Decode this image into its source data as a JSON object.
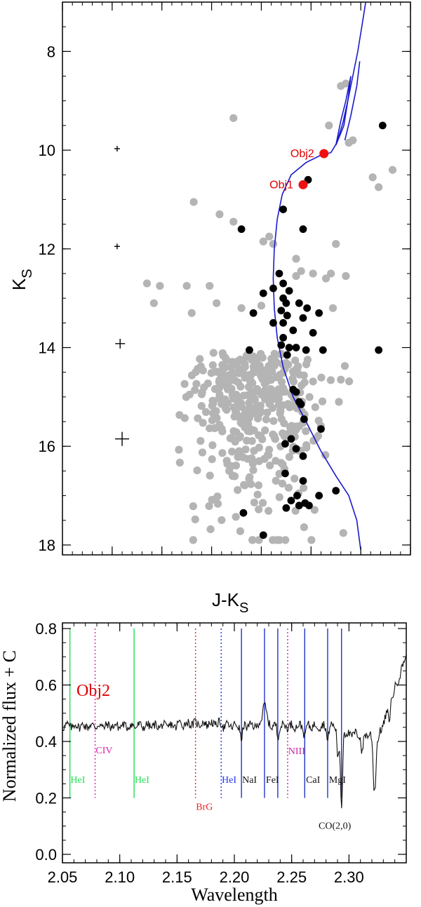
{
  "chart_data": [
    {
      "type": "scatter",
      "xlabel": "J-K",
      "xlabel_sub": "S",
      "ylabel": "K",
      "ylabel_sub": "S",
      "xlim": [
        -0.5,
        3.0
      ],
      "ylim": [
        18.2,
        7.0
      ],
      "xticks": [
        "-0.5",
        "0.0",
        "0.5",
        "1.0",
        "1.5",
        "2.0",
        "2.5",
        "3.0"
      ],
      "yticks": [
        "8",
        "10",
        "12",
        "14",
        "16",
        "18"
      ],
      "isochrone": [
        [
          2.5,
          18.1
        ],
        [
          2.46,
          17.5
        ],
        [
          2.38,
          17.0
        ],
        [
          2.25,
          16.6
        ],
        [
          2.1,
          16.1
        ],
        [
          1.95,
          15.5
        ],
        [
          1.82,
          15.0
        ],
        [
          1.72,
          14.4
        ],
        [
          1.66,
          13.8
        ],
        [
          1.63,
          13.2
        ],
        [
          1.62,
          12.6
        ],
        [
          1.63,
          12.0
        ],
        [
          1.66,
          11.4
        ],
        [
          1.71,
          10.9
        ],
        [
          1.8,
          10.5
        ],
        [
          1.95,
          10.25
        ],
        [
          2.1,
          10.1
        ],
        [
          2.2,
          10.05
        ],
        [
          2.26,
          9.85
        ],
        [
          2.32,
          9.45
        ],
        [
          2.37,
          9.0
        ],
        [
          2.42,
          8.5
        ],
        [
          2.47,
          8.0
        ],
        [
          2.51,
          7.5
        ],
        [
          2.55,
          7.0
        ]
      ],
      "loop": [
        [
          2.25,
          9.9
        ],
        [
          2.3,
          9.4
        ],
        [
          2.35,
          9.0
        ],
        [
          2.38,
          8.7
        ],
        [
          2.4,
          8.5
        ],
        [
          2.37,
          9.0
        ],
        [
          2.33,
          9.5
        ],
        [
          2.28,
          9.75
        ],
        [
          2.25,
          9.9
        ]
      ],
      "branch": [
        [
          2.34,
          9.8
        ],
        [
          2.4,
          9.3
        ],
        [
          2.46,
          8.7
        ],
        [
          2.49,
          8.2
        ]
      ],
      "black_points": [
        [
          2.72,
          9.5
        ],
        [
          1.97,
          10.6
        ],
        [
          1.72,
          11.2
        ],
        [
          1.3,
          11.6
        ],
        [
          1.92,
          11.6
        ],
        [
          1.68,
          12.5
        ],
        [
          1.72,
          12.7
        ],
        [
          1.62,
          12.8
        ],
        [
          1.78,
          12.85
        ],
        [
          1.52,
          12.9
        ],
        [
          1.72,
          13.0
        ],
        [
          1.75,
          13.1
        ],
        [
          1.88,
          13.1
        ],
        [
          1.96,
          13.2
        ],
        [
          1.7,
          13.25
        ],
        [
          1.42,
          13.3
        ],
        [
          1.76,
          13.35
        ],
        [
          2.08,
          13.3
        ],
        [
          1.72,
          13.5
        ],
        [
          1.62,
          13.5
        ],
        [
          1.92,
          13.4
        ],
        [
          1.82,
          13.65
        ],
        [
          2.02,
          13.7
        ],
        [
          1.72,
          13.8
        ],
        [
          1.7,
          13.95
        ],
        [
          1.78,
          14.0
        ],
        [
          1.85,
          14.0
        ],
        [
          1.95,
          14.05
        ],
        [
          1.76,
          14.15
        ],
        [
          1.38,
          14.05
        ],
        [
          2.12,
          14.05
        ],
        [
          2.68,
          14.05
        ],
        [
          1.82,
          14.85
        ],
        [
          1.85,
          14.9
        ],
        [
          1.88,
          15.1
        ],
        [
          1.9,
          15.15
        ],
        [
          1.93,
          15.45
        ],
        [
          2.1,
          15.65
        ],
        [
          1.8,
          15.85
        ],
        [
          1.74,
          15.95
        ],
        [
          1.85,
          16.05
        ],
        [
          1.92,
          16.2
        ],
        [
          1.74,
          16.55
        ],
        [
          1.92,
          16.7
        ],
        [
          2.25,
          16.9
        ],
        [
          1.86,
          17.0
        ],
        [
          2.08,
          17.0
        ],
        [
          1.8,
          17.1
        ],
        [
          1.94,
          17.15
        ],
        [
          1.98,
          17.2
        ],
        [
          1.75,
          17.25
        ],
        [
          1.88,
          17.2
        ],
        [
          1.32,
          17.35
        ],
        [
          1.52,
          17.8
        ]
      ],
      "red_points": [
        {
          "name": "Obj1",
          "x": 1.92,
          "y": 10.7
        },
        {
          "name": "Obj2",
          "x": 2.13,
          "y": 10.07
        }
      ],
      "error_bars": [
        {
          "x": 0.05,
          "y": 9.97,
          "size": "small"
        },
        {
          "x": 0.05,
          "y": 11.95,
          "size": "small"
        },
        {
          "x": 0.08,
          "y": 13.92,
          "size": "medium"
        },
        {
          "x": 0.1,
          "y": 15.85,
          "size": "large"
        }
      ],
      "gray_n": 420,
      "gray_extra": [
        [
          1.22,
          9.35
        ],
        [
          2.18,
          9.5
        ],
        [
          2.38,
          9.85
        ],
        [
          2.42,
          9.8
        ],
        [
          2.3,
          8.7
        ],
        [
          2.35,
          8.65
        ],
        [
          2.62,
          10.55
        ],
        [
          2.82,
          10.4
        ],
        [
          2.68,
          10.75
        ],
        [
          0.82,
          11.05
        ],
        [
          1.08,
          11.3
        ],
        [
          1.22,
          11.45
        ],
        [
          1.58,
          11.75
        ],
        [
          1.52,
          11.85
        ],
        [
          1.62,
          11.9
        ],
        [
          2.25,
          11.9
        ],
        [
          1.85,
          12.2
        ],
        [
          1.9,
          12.45
        ],
        [
          1.85,
          12.55
        ],
        [
          2.2,
          12.5
        ],
        [
          2.02,
          12.5
        ],
        [
          2.15,
          12.6
        ],
        [
          2.35,
          12.55
        ],
        [
          0.48,
          12.75
        ],
        [
          0.35,
          12.7
        ],
        [
          0.75,
          12.75
        ],
        [
          0.98,
          12.75
        ],
        [
          0.42,
          13.1
        ],
        [
          1.05,
          13.1
        ],
        [
          1.3,
          13.2
        ],
        [
          1.5,
          13.15
        ],
        [
          0.8,
          13.3
        ],
        [
          2.22,
          13.2
        ],
        [
          2.3,
          14.65
        ],
        [
          2.28,
          15.1
        ]
      ]
    },
    {
      "type": "line",
      "xlabel": "Wavelength",
      "ylabel": "Normalized flux + C",
      "xlim": [
        2.05,
        2.35
      ],
      "ylim": [
        -0.03,
        0.82
      ],
      "xticks": [
        "2.05",
        "2.10",
        "2.15",
        "2.20",
        "2.25",
        "2.30"
      ],
      "yticks": [
        "0.0",
        "0.2",
        "0.4",
        "0.6",
        "0.8"
      ],
      "object_label": "Obj2",
      "markers": [
        {
          "x": 2.0565,
          "label": "HeI",
          "color": "#22dd55",
          "style": "solid",
          "lx": 2.057,
          "ly": 0.253
        },
        {
          "x": 2.0785,
          "label": "CIV",
          "color": "#dd22aa",
          "style": "dotted",
          "lx": 2.079,
          "ly": 0.358
        },
        {
          "x": 2.1125,
          "label": "HeI",
          "color": "#22dd55",
          "style": "solid",
          "lx": 2.113,
          "ly": 0.253
        },
        {
          "x": 2.1661,
          "label": "BrG",
          "color": "#ee2222",
          "style": "dotted",
          "lx": 2.1665,
          "ly": 0.158
        },
        {
          "x": 2.1885,
          "label": "HeI",
          "color": "#2233ee",
          "style": "dotted",
          "lx": 2.189,
          "ly": 0.253
        },
        {
          "x": 2.2062,
          "label": "NaI",
          "color": "#2233cc",
          "style": "solid",
          "lx": 2.2068,
          "ly": 0.253
        },
        {
          "x": 2.2263,
          "label": "FeI",
          "color": "#2233cc",
          "style": "solid",
          "lx": 2.2275,
          "ly": 0.253
        },
        {
          "x": 2.2379,
          "label": "",
          "color": "#2233cc",
          "style": "solid"
        },
        {
          "x": 2.2465,
          "label": "NIII",
          "color": "#cc22aa",
          "style": "dotted",
          "lx": 2.247,
          "ly": 0.355
        },
        {
          "x": 2.2614,
          "label": "CaI",
          "color": "#2233cc",
          "style": "solid",
          "lx": 2.2625,
          "ly": 0.253
        },
        {
          "x": 2.2814,
          "label": "MgI",
          "color": "#2233cc",
          "style": "solid",
          "lx": 2.2825,
          "ly": 0.253
        },
        {
          "x": 2.2935,
          "label": "",
          "color": "#2233cc",
          "style": "solid"
        }
      ],
      "co_label": {
        "text": "CO(2,0)",
        "lx": 2.2735,
        "ly": 0.09
      },
      "line_label_colors": {
        "NaI": "#111111",
        "FeI": "#111111",
        "CaI": "#111111",
        "MgI": "#111111"
      },
      "features": [
        {
          "x": 2.2062,
          "depth": 0.05,
          "w": 0.0012
        },
        {
          "x": 2.2263,
          "depth": -0.06,
          "w": 0.002
        },
        {
          "x": 2.2379,
          "depth": 0.04,
          "w": 0.001
        },
        {
          "x": 2.2614,
          "depth": 0.035,
          "w": 0.0012
        },
        {
          "x": 2.2814,
          "depth": 0.05,
          "w": 0.0012
        },
        {
          "x": 2.2935,
          "depth": 0.29,
          "w": 0.0013
        },
        {
          "x": 2.2905,
          "depth": 0.12,
          "w": 0.0012
        },
        {
          "x": 2.3225,
          "depth": 0.22,
          "w": 0.0018
        },
        {
          "x": 2.3115,
          "depth": 0.07,
          "w": 0.0012
        }
      ]
    }
  ]
}
